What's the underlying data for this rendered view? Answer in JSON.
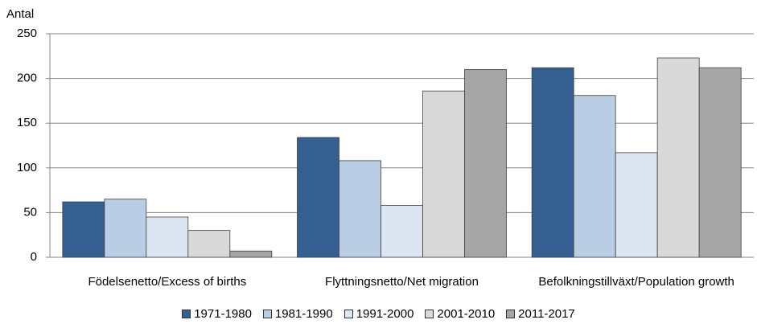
{
  "chart_data": {
    "type": "bar",
    "y_label": "Antal",
    "categories": [
      "Födelsenetto/Excess of births",
      "Flyttningsnetto/Net migration",
      "Befolkningstillväxt/Population growth"
    ],
    "series": [
      {
        "name": "1971-1980",
        "color": "#355e91",
        "values": [
          62,
          134,
          212
        ]
      },
      {
        "name": "1981-1990",
        "color": "#b9cde5",
        "values": [
          65,
          108,
          181
        ]
      },
      {
        "name": "1991-2000",
        "color": "#dce6f2",
        "values": [
          45,
          58,
          117
        ]
      },
      {
        "name": "2001-2010",
        "color": "#d9d9d9",
        "values": [
          30,
          186,
          223
        ]
      },
      {
        "name": "2011-2017",
        "color": "#a6a6a6",
        "values": [
          7,
          210,
          212
        ]
      }
    ],
    "ylim": [
      0,
      250
    ],
    "yticks": [
      0,
      50,
      100,
      150,
      200,
      250
    ],
    "grid": true,
    "legend": "bottom"
  }
}
